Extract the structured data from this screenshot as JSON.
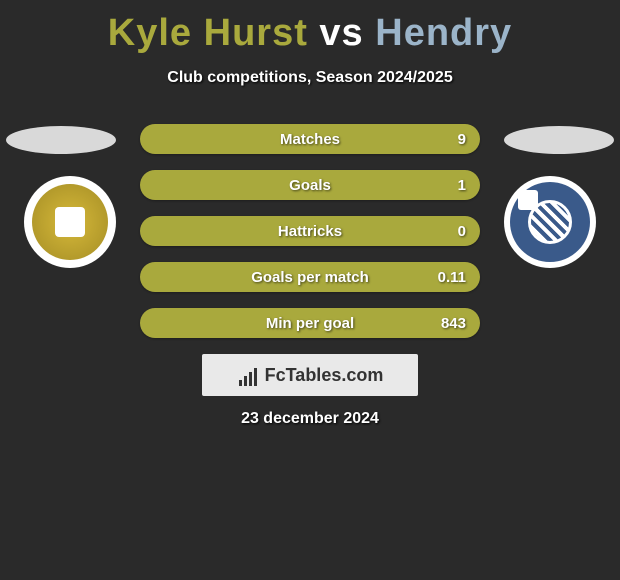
{
  "title": {
    "player1": "Kyle Hurst",
    "vs": "vs",
    "player2": "Hendry"
  },
  "subtitle": "Club competitions, Season 2024/2025",
  "colors": {
    "player1": "#a9a93d",
    "player2": "#9bb4c9",
    "background": "#2a2a2a"
  },
  "stats": [
    {
      "label": "Matches",
      "value": "9"
    },
    {
      "label": "Goals",
      "value": "1"
    },
    {
      "label": "Hattricks",
      "value": "0"
    },
    {
      "label": "Goals per match",
      "value": "0.11"
    },
    {
      "label": "Min per goal",
      "value": "843"
    }
  ],
  "brand": "FcTables.com",
  "date": "23 december 2024",
  "badges": {
    "left": "doncaster-badge",
    "right": "tranmere-badge"
  }
}
